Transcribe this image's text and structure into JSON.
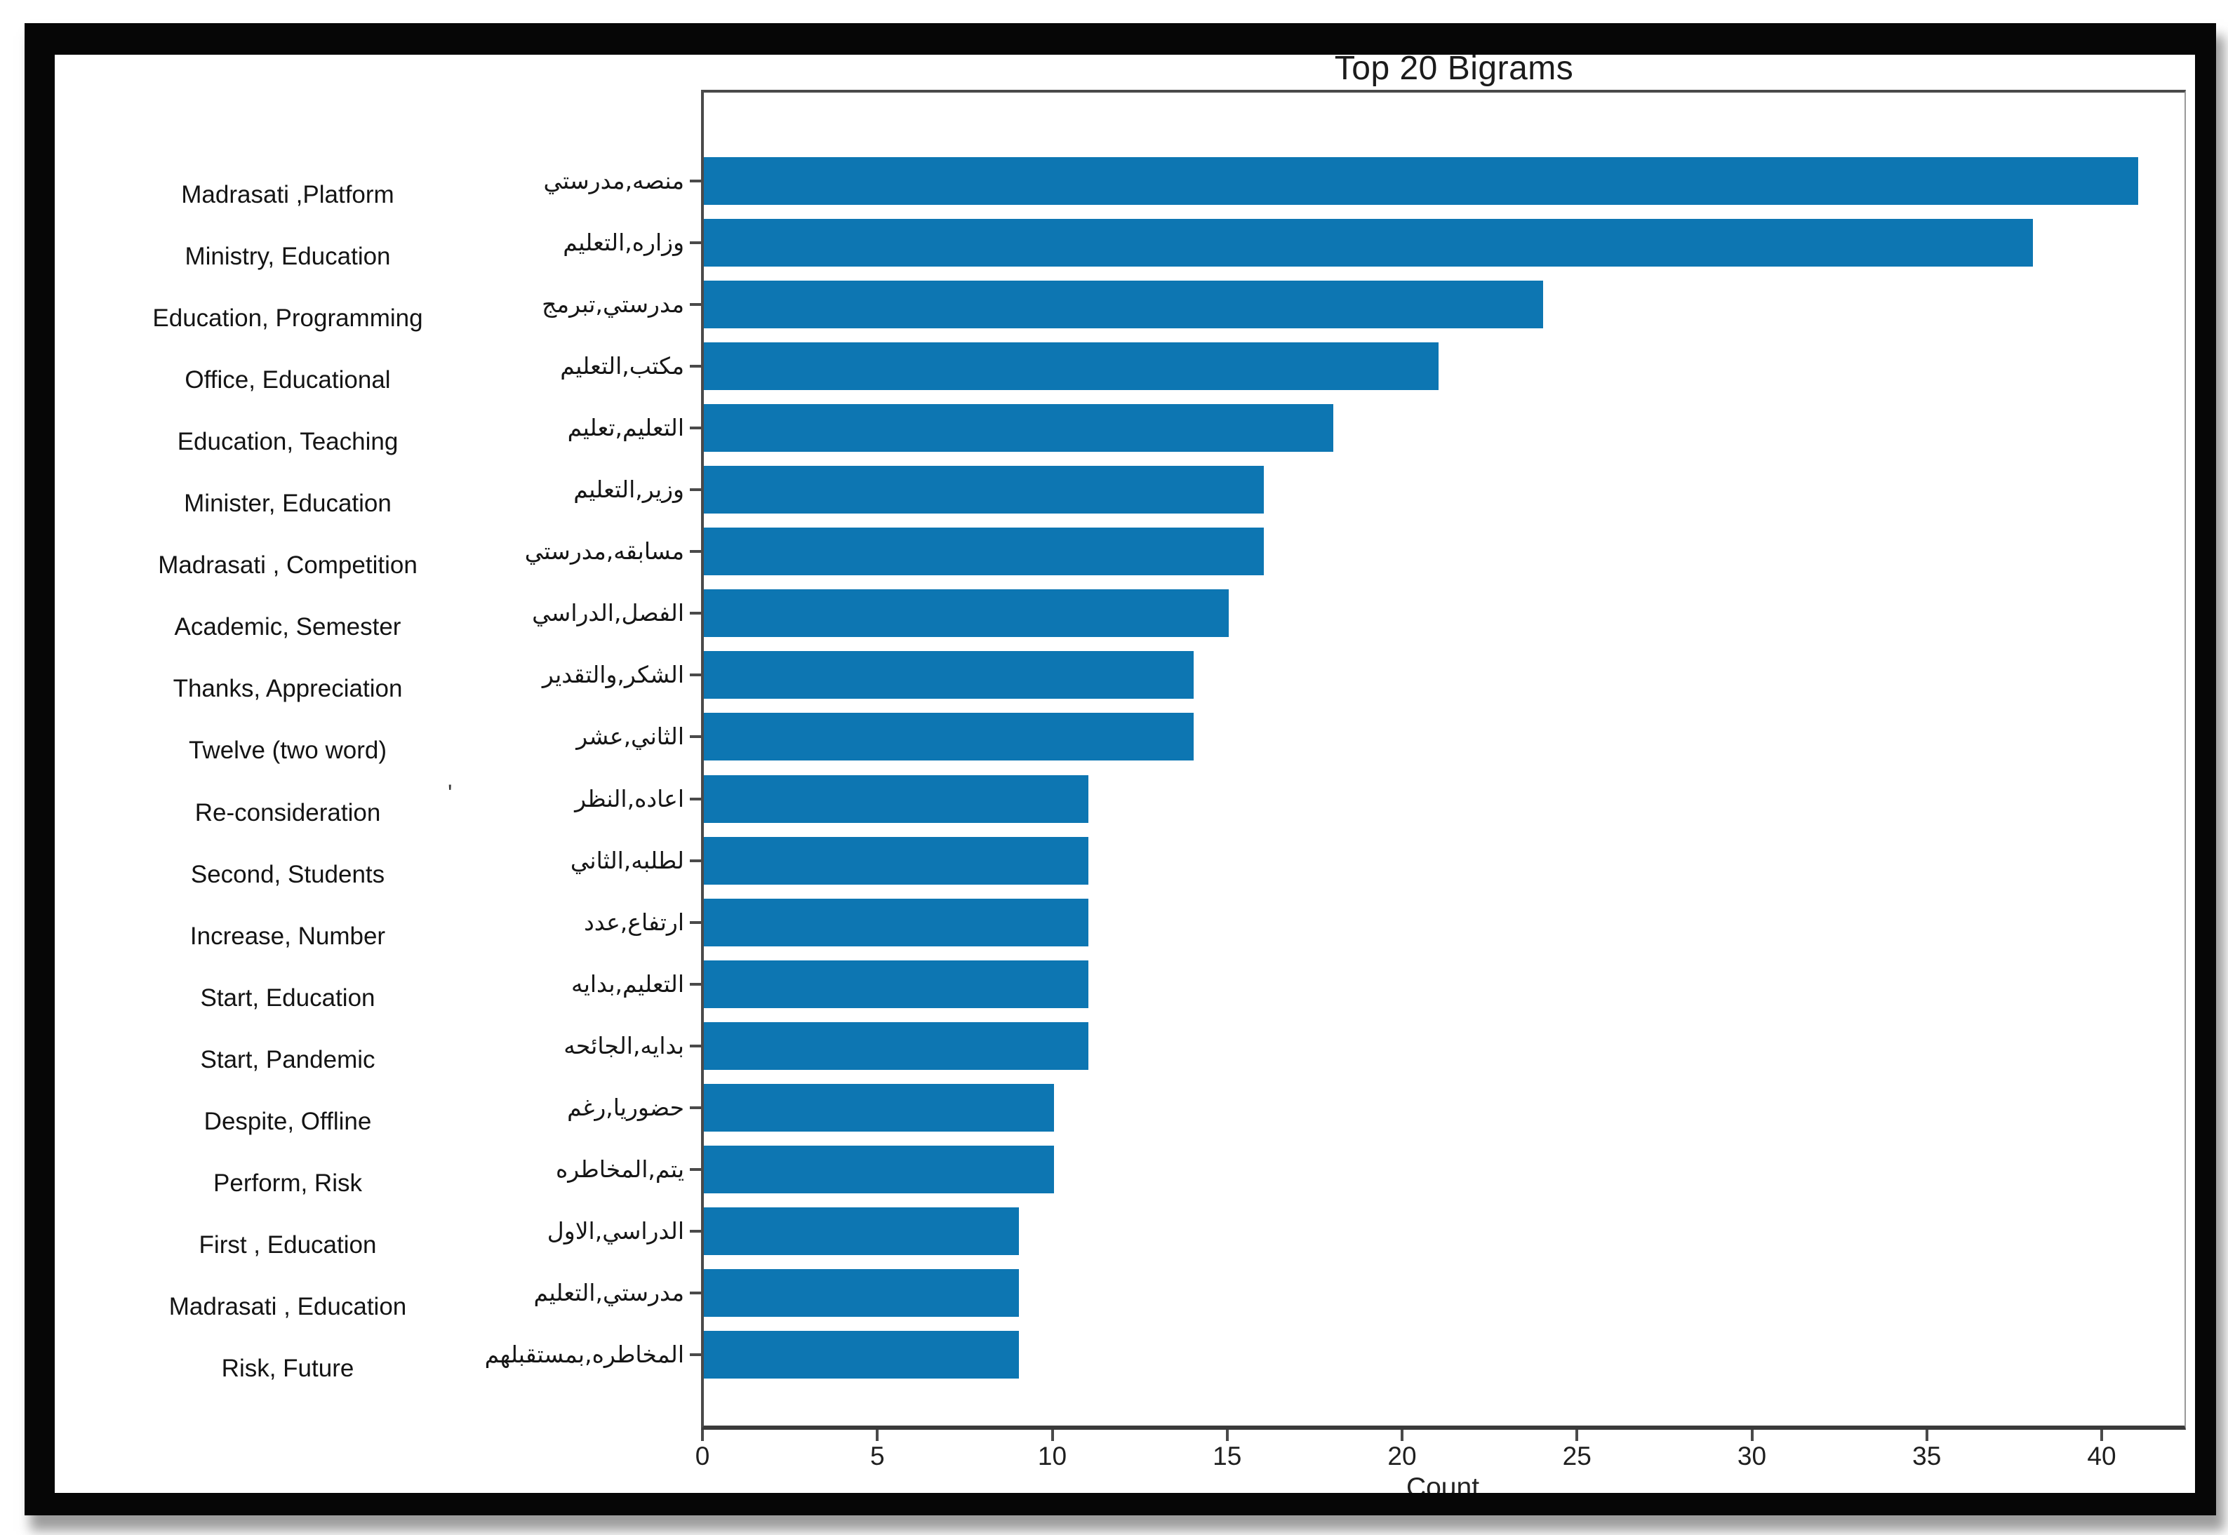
{
  "chart_data": {
    "type": "bar",
    "orientation": "horizontal",
    "title": "Top 20 Bigrams",
    "xlabel": "Count",
    "xlim": [
      0,
      42.3
    ],
    "x_ticks": [
      0,
      5,
      10,
      15,
      20,
      25,
      30,
      35,
      40
    ],
    "grid": false,
    "legend": null,
    "bar_color": "#0d76b2",
    "categories_arabic": [
      "منصه,مدرستي",
      "وزاره,التعليم",
      "مدرستي,تبرمج",
      "مكتب,التعليم",
      "التعليم,تعليم",
      "وزير,التعليم",
      "مسابقه,مدرستي",
      "الفصل,الدراسي",
      "الشكر,والتقدير",
      "الثاني,عشر",
      "اعاده,النظر",
      "لطلبه,الثاني",
      "ارتفاع,عدد",
      "التعليم,بدايه",
      "بدايه,الجائحه",
      "حضوريا,رغم",
      "يتم,المخاطره",
      "الدراسي,الاول",
      "مدرستي,التعليم",
      "المخاطره,بمستقبلهم"
    ],
    "categories_english": [
      "Madrasati ,Platform",
      "Ministry, Education",
      "Education, Programming",
      "Office, Educational",
      "Education, Teaching",
      "Minister, Education",
      "Madrasati , Competition",
      "Academic, Semester",
      "Thanks, Appreciation",
      "Twelve (two word)",
      "Re-consideration",
      "Second, Students",
      "Increase, Number",
      "Start, Education",
      "Start, Pandemic",
      "Despite, Offline",
      "Perform, Risk",
      "First , Education",
      "Madrasati , Education",
      "Risk, Future"
    ],
    "values": [
      41,
      38,
      24,
      21,
      18,
      16,
      16,
      15,
      14,
      14,
      11,
      11,
      11,
      11,
      11,
      10,
      10,
      9,
      9,
      9
    ]
  },
  "annotations": {
    "stray_mark": "'"
  },
  "colors": {
    "bar": "#0d76b2",
    "axis": "#4a4a4a",
    "text": "#161616",
    "frame": "#060606",
    "background": "#ffffff"
  }
}
